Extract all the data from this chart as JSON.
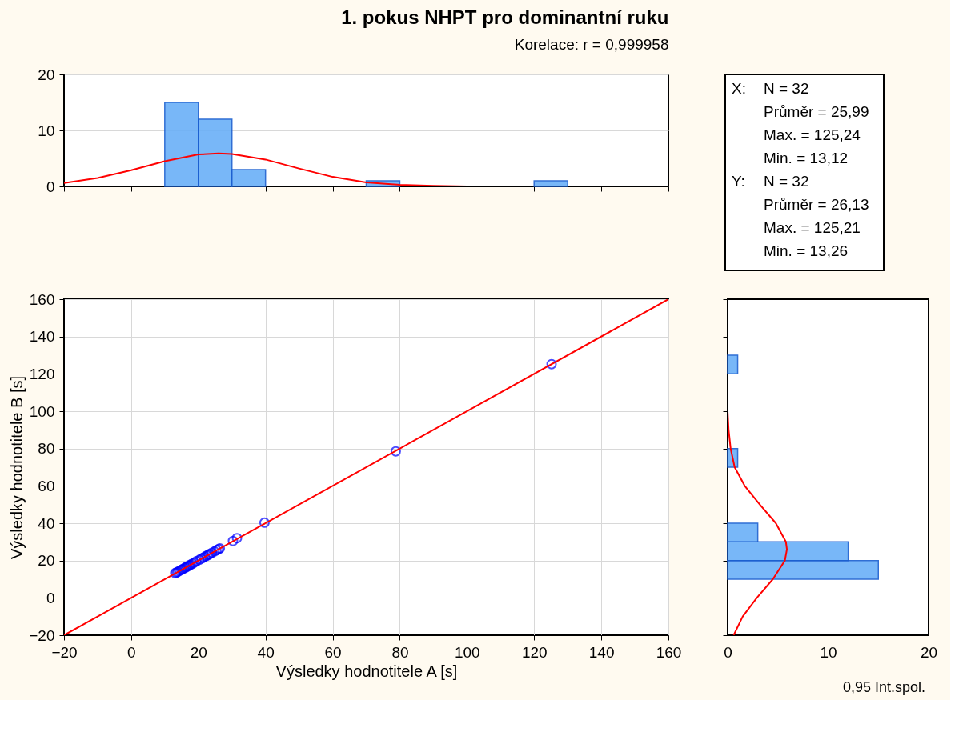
{
  "chart_data": [
    {
      "type": "histogram",
      "title": "1. pokus NHPT pro dominantní ruku",
      "subtitle": "Korelace: r = 0,999958",
      "bins": [
        10,
        20,
        30,
        40,
        50,
        60,
        70,
        80,
        90,
        100,
        110,
        120,
        130
      ],
      "values": [
        15,
        12,
        3,
        0,
        0,
        0,
        1,
        0,
        0,
        0,
        0,
        1
      ],
      "color": "#6ab0f8",
      "xlim": [
        -20,
        160
      ],
      "xticks": [
        -20,
        0,
        20,
        40,
        60,
        80,
        100,
        120,
        140,
        160
      ],
      "ylim": [
        0,
        20
      ],
      "yticks": [
        0,
        10,
        20
      ],
      "grid": "y",
      "tick_labels": "y",
      "series": [
        {
          "type": "line",
          "color": "#ff0000",
          "x": [
            -20,
            -10,
            0,
            10,
            20,
            26,
            30,
            40,
            50,
            60,
            70,
            80,
            90,
            100,
            120,
            160
          ],
          "values": [
            0.6,
            1.5,
            2.9,
            4.5,
            5.7,
            5.9,
            5.8,
            4.8,
            3.2,
            1.7,
            0.7,
            0.3,
            0.1,
            0,
            0,
            0
          ]
        }
      ]
    },
    {
      "type": "other",
      "annotations": [
        "X:",
        "N = 32",
        "Průměr = 25,99",
        "Max. = 125,24",
        "Min. = 13,12",
        "Y:",
        "N = 32",
        "Průměr = 26,13",
        "Max. = 125,21",
        "Min. = 13,26"
      ]
    },
    {
      "type": "scatter",
      "xlabel": "Výsledky hodnotitele A [s]",
      "ylabel": "Výsledky hodnotitele B [s]",
      "xlim": [
        -20,
        160
      ],
      "xticks": [
        -20,
        0,
        20,
        40,
        60,
        80,
        100,
        120,
        140,
        160
      ],
      "ylim": [
        -20,
        160
      ],
      "yticks": [
        -20,
        0,
        20,
        40,
        60,
        80,
        100,
        120,
        140,
        160
      ],
      "grid": true,
      "series": [
        {
          "type": "scatter",
          "color": "#0000ff",
          "marker": "circle",
          "x": [
            13.1,
            13.5,
            13.9,
            14.4,
            14.9,
            15.3,
            15.8,
            16.2,
            16.6,
            17.0,
            17.4,
            17.8,
            18.3,
            18.8,
            19.4,
            20.3,
            20.9,
            21.5,
            22.0,
            22.5,
            23.0,
            23.4,
            24.0,
            24.8,
            25.4,
            26.0,
            26.4,
            30.3,
            31.5,
            39.7,
            78.8,
            125.2
          ],
          "values": [
            13.3,
            13.6,
            14.0,
            14.5,
            15.0,
            15.4,
            15.9,
            16.3,
            16.7,
            17.1,
            17.5,
            17.9,
            18.4,
            18.9,
            19.6,
            20.4,
            21.0,
            21.6,
            22.1,
            22.6,
            23.1,
            23.5,
            24.1,
            24.9,
            25.5,
            26.1,
            26.5,
            30.5,
            32.0,
            40.3,
            78.5,
            125.2
          ]
        },
        {
          "type": "line",
          "color": "#ff0000",
          "x": [
            -20,
            160
          ],
          "values": [
            -20,
            160
          ]
        }
      ]
    },
    {
      "type": "histogram",
      "orientation": "horizontal",
      "bins": [
        10,
        20,
        30,
        40,
        50,
        60,
        70,
        80,
        90,
        100,
        110,
        120,
        130
      ],
      "values": [
        15,
        12,
        3,
        0,
        0,
        0,
        1,
        0,
        0,
        0,
        0,
        1
      ],
      "color": "#6ab0f8",
      "ylim": [
        -20,
        160
      ],
      "yticks": [
        -20,
        0,
        20,
        40,
        60,
        80,
        100,
        120,
        140,
        160
      ],
      "xlim": [
        0,
        20
      ],
      "xticks": [
        0,
        10,
        20
      ],
      "grid": "x",
      "tick_labels": "x",
      "annotations": [
        "0,95 Int.spol."
      ],
      "series": [
        {
          "type": "line",
          "color": "#ff0000",
          "x": [
            -20,
            -10,
            0,
            10,
            20,
            26,
            30,
            40,
            50,
            60,
            70,
            80,
            90,
            100,
            120,
            160
          ],
          "values": [
            0.6,
            1.5,
            2.9,
            4.5,
            5.7,
            5.9,
            5.8,
            4.8,
            3.2,
            1.7,
            0.7,
            0.3,
            0.1,
            0,
            0,
            0
          ]
        }
      ]
    }
  ]
}
